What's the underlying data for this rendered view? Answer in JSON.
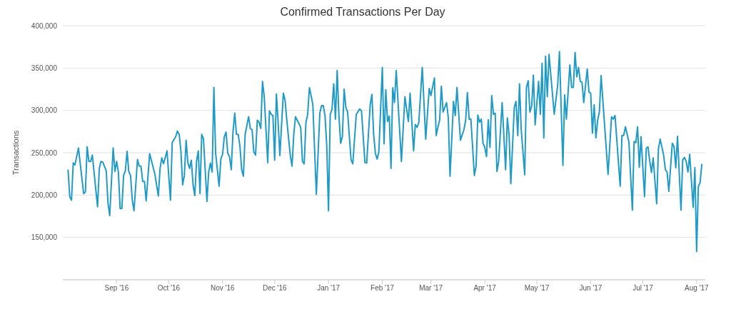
{
  "chart_data": {
    "type": "line",
    "title": "Confirmed Transactions Per Day",
    "ylabel": "Transactions",
    "x": [
      "2016-08-04",
      "2016-08-05",
      "2016-08-06",
      "2016-08-07",
      "2016-08-08",
      "2016-08-10",
      "2016-08-13",
      "2016-08-14",
      "2016-08-15",
      "2016-08-16",
      "2016-08-17",
      "2016-08-18",
      "2016-08-21",
      "2016-08-22",
      "2016-08-23",
      "2016-08-24",
      "2016-08-26",
      "2016-08-27",
      "2016-08-28",
      "2016-08-30",
      "2016-08-31",
      "2016-09-01",
      "2016-09-02",
      "2016-09-03",
      "2016-09-04",
      "2016-09-05",
      "2016-09-06",
      "2016-09-07",
      "2016-09-08",
      "2016-09-09",
      "2016-09-10",
      "2016-09-11",
      "2016-09-13",
      "2016-09-14",
      "2016-09-15",
      "2016-09-16",
      "2016-09-17",
      "2016-09-18",
      "2016-09-20",
      "2016-09-23",
      "2016-09-25",
      "2016-09-26",
      "2016-09-27",
      "2016-09-28",
      "2016-09-30",
      "2016-10-02",
      "2016-10-03",
      "2016-10-05",
      "2016-10-06",
      "2016-10-07",
      "2016-10-08",
      "2016-10-09",
      "2016-10-10",
      "2016-10-11",
      "2016-10-12",
      "2016-10-13",
      "2016-10-14",
      "2016-10-15",
      "2016-10-16",
      "2016-10-17",
      "2016-10-18",
      "2016-10-19",
      "2016-10-20",
      "2016-10-21",
      "2016-10-23",
      "2016-10-24",
      "2016-10-25",
      "2016-10-26",
      "2016-10-27",
      "2016-10-28",
      "2016-10-30",
      "2016-10-31",
      "2016-11-01",
      "2016-11-02",
      "2016-11-03",
      "2016-11-04",
      "2016-11-05",
      "2016-11-06",
      "2016-11-07",
      "2016-11-08",
      "2016-11-09",
      "2016-11-10",
      "2016-11-11",
      "2016-11-12",
      "2016-11-13",
      "2016-11-14",
      "2016-11-16",
      "2016-11-17",
      "2016-11-18",
      "2016-11-19",
      "2016-11-20",
      "2016-11-21",
      "2016-11-22",
      "2016-11-23",
      "2016-11-24",
      "2016-11-25",
      "2016-11-27",
      "2016-11-28",
      "2016-11-29",
      "2016-11-30",
      "2016-12-01",
      "2016-12-02",
      "2016-12-03",
      "2016-12-04",
      "2016-12-06",
      "2016-12-07",
      "2016-12-08",
      "2016-12-10",
      "2016-12-11",
      "2016-12-12",
      "2016-12-13",
      "2016-12-14",
      "2016-12-16",
      "2016-12-17",
      "2016-12-18",
      "2016-12-19",
      "2016-12-20",
      "2016-12-21",
      "2016-12-22",
      "2016-12-23",
      "2016-12-25",
      "2016-12-27",
      "2016-12-28",
      "2016-12-29",
      "2016-12-30",
      "2016-12-31",
      "2017-01-01",
      "2017-01-02",
      "2017-01-03",
      "2017-01-04",
      "2017-01-05",
      "2017-01-06",
      "2017-01-07",
      "2017-01-08",
      "2017-01-09",
      "2017-01-10",
      "2017-01-11",
      "2017-01-12",
      "2017-01-14",
      "2017-01-15",
      "2017-01-17",
      "2017-01-19",
      "2017-01-20",
      "2017-01-22",
      "2017-01-23",
      "2017-01-25",
      "2017-01-26",
      "2017-01-27",
      "2017-01-28",
      "2017-01-29",
      "2017-01-30",
      "2017-02-01",
      "2017-02-02",
      "2017-02-03",
      "2017-02-04",
      "2017-02-05",
      "2017-02-06",
      "2017-02-07",
      "2017-02-08",
      "2017-02-09",
      "2017-02-12",
      "2017-02-14",
      "2017-02-16",
      "2017-02-17",
      "2017-02-19",
      "2017-02-20",
      "2017-02-21",
      "2017-02-22",
      "2017-02-24",
      "2017-02-26",
      "2017-02-28",
      "2017-03-01",
      "2017-03-03",
      "2017-03-04",
      "2017-03-05",
      "2017-03-06",
      "2017-03-07",
      "2017-03-08",
      "2017-03-10",
      "2017-03-11",
      "2017-03-12",
      "2017-03-14",
      "2017-03-15",
      "2017-03-16",
      "2017-03-18",
      "2017-03-20",
      "2017-03-21",
      "2017-03-22",
      "2017-03-23",
      "2017-03-24",
      "2017-03-26",
      "2017-03-27",
      "2017-03-28",
      "2017-03-29",
      "2017-03-30",
      "2017-03-31",
      "2017-04-01",
      "2017-04-02",
      "2017-04-03",
      "2017-04-04",
      "2017-04-05",
      "2017-04-06",
      "2017-04-07",
      "2017-04-08",
      "2017-04-09",
      "2017-04-11",
      "2017-04-13",
      "2017-04-14",
      "2017-04-15",
      "2017-04-16",
      "2017-04-18",
      "2017-04-19",
      "2017-04-20",
      "2017-04-21",
      "2017-04-22",
      "2017-04-24",
      "2017-04-25",
      "2017-04-26",
      "2017-04-27",
      "2017-04-28",
      "2017-04-29",
      "2017-04-30",
      "2017-05-02",
      "2017-05-03",
      "2017-05-04",
      "2017-05-05",
      "2017-05-06",
      "2017-05-07",
      "2017-05-08",
      "2017-05-11",
      "2017-05-13",
      "2017-05-14",
      "2017-05-16",
      "2017-05-17",
      "2017-05-18",
      "2017-05-20",
      "2017-05-21",
      "2017-05-22",
      "2017-05-23",
      "2017-05-24",
      "2017-05-25",
      "2017-05-26",
      "2017-05-27",
      "2017-05-28",
      "2017-05-30",
      "2017-05-31",
      "2017-06-01",
      "2017-06-02",
      "2017-06-03",
      "2017-06-04",
      "2017-06-05",
      "2017-06-06",
      "2017-06-07",
      "2017-06-11",
      "2017-06-13",
      "2017-06-14",
      "2017-06-15",
      "2017-06-18",
      "2017-06-19",
      "2017-06-20",
      "2017-06-21",
      "2017-06-23",
      "2017-06-25",
      "2017-06-26",
      "2017-06-27",
      "2017-06-28",
      "2017-06-29",
      "2017-06-30",
      "2017-07-02",
      "2017-07-03",
      "2017-07-04",
      "2017-07-05",
      "2017-07-06",
      "2017-07-07",
      "2017-07-09",
      "2017-07-10",
      "2017-07-11",
      "2017-07-13",
      "2017-07-14",
      "2017-07-15",
      "2017-07-16",
      "2017-07-18",
      "2017-07-19",
      "2017-07-20",
      "2017-07-21",
      "2017-07-23",
      "2017-07-24",
      "2017-07-25",
      "2017-07-26",
      "2017-07-27",
      "2017-07-28",
      "2017-07-30",
      "2017-07-31",
      "2017-08-01",
      "2017-08-02",
      "2017-08-03",
      "2017-08-04"
    ],
    "series": [
      {
        "color": "#1f9bc6",
        "values": [
          230000,
          198000,
          194000,
          238000,
          235600,
          255600,
          201700,
          203600,
          257000,
          239700,
          239700,
          247200,
          186100,
          231400,
          239700,
          238900,
          228600,
          191100,
          175800,
          255600,
          227800,
          239700,
          227200,
          184100,
          184100,
          223100,
          228600,
          251700,
          227800,
          223100,
          194000,
          181400,
          241900,
          234200,
          234200,
          216100,
          216100,
          193100,
          248900,
          225000,
          198900,
          231400,
          243900,
          237000,
          252200,
          194000,
          262000,
          268900,
          275600,
          271700,
          252200,
          212100,
          223100,
          264700,
          238300,
          231400,
          241100,
          212100,
          199400,
          239700,
          252200,
          201700,
          271700,
          266600,
          192500,
          227200,
          237800,
          227200,
          327200,
          249400,
          210500,
          242500,
          248100,
          268900,
          274400,
          249400,
          245300,
          230000,
          274400,
          296700,
          271700,
          271700,
          257800,
          230000,
          222200,
          271700,
          292500,
          278600,
          277200,
          250800,
          247200,
          288300,
          286100,
          278600,
          334200,
          316100,
          238300,
          299400,
          295300,
          293900,
          241100,
          319400,
          285600,
          246700,
          320300,
          311900,
          288300,
          246700,
          234200,
          271700,
          292500,
          288300,
          280000,
          239700,
          236900,
          285600,
          295300,
          326700,
          317500,
          306400,
          200800,
          296700,
          305600,
          305600,
          293900,
          257800,
          181400,
          295300,
          300800,
          331400,
          289700,
          347200,
          293900,
          261100,
          268900,
          325000,
          303600,
          298100,
          241700,
          236900,
          295300,
          301700,
          299400,
          238300,
          237800,
          306400,
          318900,
          271700,
          249400,
          242500,
          250800,
          350800,
          260500,
          324400,
          286900,
          293300,
          231400,
          326700,
          309200,
          347200,
          239700,
          316100,
          286900,
          320300,
          252200,
          283300,
          280000,
          285600,
          350800,
          266100,
          325800,
          317500,
          338300,
          270300,
          280000,
          288300,
          328600,
          298100,
          309200,
          291100,
          222200,
          310600,
          293900,
          327200,
          264700,
          277200,
          288300,
          321100,
          289700,
          289700,
          223100,
          234200,
          294400,
          286100,
          289700,
          261100,
          256400,
          245300,
          288900,
          256400,
          317500,
          295300,
          296700,
          227800,
          239700,
          309200,
          230000,
          291100,
          271700,
          213300,
          303600,
          310600,
          270300,
          331400,
          277200,
          223900,
          327200,
          335000,
          298100,
          305000,
          341700,
          282800,
          334200,
          295300,
          355600,
          267500,
          363900,
          316100,
          366100,
          295300,
          330000,
          369400,
          235000,
          318300,
          289700,
          353600,
          327200,
          327200,
          368300,
          339700,
          350800,
          334200,
          333300,
          309200,
          348900,
          321700,
          320300,
          273100,
          306400,
          267500,
          288300,
          298100,
          341100,
          224400,
          292500,
          289700,
          293900,
          210500,
          270300,
          270300,
          280600,
          262800,
          182200,
          263300,
          261900,
          280600,
          232800,
          268900,
          198100,
          255000,
          256900,
          240300,
          226700,
          243900,
          189700,
          254200,
          266100,
          247200,
          230000,
          227200,
          204400,
          261100,
          257200,
          232200,
          269400,
          182200,
          241700,
          244400,
          239700,
          227200,
          248100,
          185600,
          232200,
          133300,
          210000,
          214700,
          236900
        ]
      }
    ],
    "xlim": [
      "2016-08-01",
      "2017-08-06"
    ],
    "xticks": [
      {
        "value": "2016-09-01",
        "label": "Sep '16"
      },
      {
        "value": "2016-10-01",
        "label": "Oct '16"
      },
      {
        "value": "2016-11-01",
        "label": "Nov '16"
      },
      {
        "value": "2016-12-01",
        "label": "Dec '16"
      },
      {
        "value": "2017-01-01",
        "label": "Jan '17"
      },
      {
        "value": "2017-02-01",
        "label": "Feb '17"
      },
      {
        "value": "2017-03-01",
        "label": "Mar '17"
      },
      {
        "value": "2017-04-01",
        "label": "Apr '17"
      },
      {
        "value": "2017-05-01",
        "label": "May '17"
      },
      {
        "value": "2017-06-01",
        "label": "Jun '17"
      },
      {
        "value": "2017-07-01",
        "label": "Jul '17"
      },
      {
        "value": "2017-08-01",
        "label": "Aug '17"
      }
    ],
    "ylim": [
      100000,
      400000
    ],
    "yticks": [
      {
        "value": 150000,
        "label": "150,000"
      },
      {
        "value": 200000,
        "label": "200,000"
      },
      {
        "value": 250000,
        "label": "250,000"
      },
      {
        "value": 300000,
        "label": "300,000"
      },
      {
        "value": 350000,
        "label": "350,000"
      },
      {
        "value": 400000,
        "label": "400,000"
      }
    ],
    "grid": "y",
    "legend": false,
    "marker": "none",
    "line_style": "solid"
  }
}
